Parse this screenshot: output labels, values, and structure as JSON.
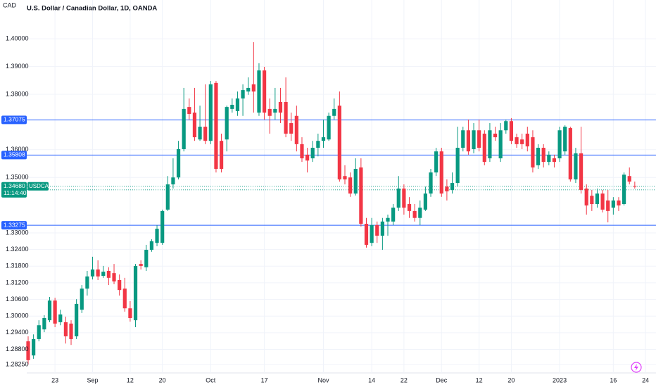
{
  "chart_data": {
    "type": "candlestick",
    "currency": "CAD",
    "title": "U.S. Dollar / Canadian Dollar, 1D, OANDA",
    "symbol": "USDCAD",
    "countdown": "11:14:40",
    "categories": [
      null,
      null,
      null,
      null,
      null,
      "23",
      null,
      null,
      null,
      null,
      null,
      null,
      "Sep",
      null,
      null,
      null,
      null,
      null,
      null,
      "12",
      null,
      null,
      null,
      null,
      null,
      "20",
      null,
      null,
      null,
      null,
      null,
      null,
      null,
      null,
      "Oct",
      null,
      null,
      null,
      null,
      null,
      null,
      null,
      null,
      null,
      "17",
      null,
      null,
      null,
      null,
      null,
      null,
      null,
      null,
      null,
      null,
      "Nov",
      null,
      null,
      null,
      null,
      null,
      null,
      null,
      null,
      "14",
      null,
      null,
      null,
      null,
      null,
      "22",
      null,
      null,
      null,
      null,
      null,
      null,
      "Dec",
      null,
      null,
      null,
      null,
      null,
      null,
      "12",
      null,
      null,
      null,
      null,
      null,
      "20",
      null,
      null,
      null,
      null,
      null,
      null,
      null,
      null,
      "2023",
      null,
      null,
      null,
      null,
      null,
      null,
      null,
      null,
      null,
      "16",
      null,
      null,
      null,
      null,
      null,
      "24"
    ],
    "open": [
      1.2909,
      1.2858,
      1.2917,
      1.2952,
      1.2985,
      1.3056,
      1.2978,
      1.2978,
      1.2973,
      1.2927,
      1.3023,
      1.3099,
      1.3143,
      1.3168,
      1.3145,
      1.3163,
      1.3155,
      1.313,
      1.3099,
      1.3028,
      1.2985,
      1.3188,
      1.3176,
      1.3239,
      1.3264,
      1.3264,
      1.3384,
      1.3475,
      1.35,
      1.3602,
      1.3754,
      1.3734,
      1.3637,
      1.3683,
      1.3632,
      1.3841,
      1.3632,
      1.3637,
      1.3747,
      1.3739,
      1.3785,
      1.381,
      1.3836,
      1.3734,
      1.3886,
      1.3747,
      1.3734,
      1.3772,
      1.3772,
      1.3696,
      1.3722,
      1.362,
      1.3582,
      1.3569,
      1.3607,
      1.3632,
      1.3637,
      1.3722,
      1.3759,
      1.3505,
      1.35,
      1.3442,
      1.3536,
      1.3333,
      1.3264,
      1.3328,
      1.329,
      1.3341,
      1.3341,
      1.3391,
      1.346,
      1.3404,
      1.3379,
      1.3354,
      1.3384,
      1.3442,
      1.3518,
      1.3594,
      1.3467,
      1.3455,
      1.348,
      1.3607,
      1.367,
      1.3602,
      1.367,
      1.3658,
      1.3569,
      1.3658,
      1.3569,
      1.367,
      1.3703,
      1.3645,
      1.3637,
      1.3658,
      1.3645,
      1.3544,
      1.3607,
      1.3556,
      1.3569,
      1.3569,
      1.3594,
      1.3678,
      1.3493,
      1.3587,
      1.346,
      1.3434,
      1.3404,
      1.3442,
      1.3417,
      1.3391,
      1.3417,
      1.3404,
      1.3505,
      1.347,
      null,
      null
    ],
    "high": [
      1.2927,
      1.2934,
      1.2985,
      1.3003,
      1.3069,
      1.3066,
      1.3023,
      1.2998,
      1.2985,
      1.3061,
      1.3112,
      1.3163,
      1.3214,
      1.3201,
      1.3181,
      1.3176,
      1.3188,
      1.315,
      1.3138,
      1.3054,
      1.3188,
      1.3201,
      1.3257,
      1.3277,
      1.3328,
      1.3384,
      1.3505,
      1.3569,
      1.3632,
      1.3823,
      1.3785,
      1.3823,
      1.3759,
      1.3836,
      1.3848,
      1.3848,
      1.3658,
      1.3759,
      1.3785,
      1.381,
      1.3836,
      1.3861,
      1.3988,
      1.3912,
      1.3899,
      1.3785,
      1.3823,
      1.3823,
      1.3861,
      1.3734,
      1.3759,
      1.3645,
      1.3607,
      1.3632,
      1.3658,
      1.3709,
      1.3734,
      1.3785,
      1.381,
      1.3544,
      1.3518,
      1.3569,
      1.3569,
      1.3354,
      1.3354,
      1.3341,
      1.3354,
      1.3366,
      1.3404,
      1.3505,
      1.3475,
      1.3429,
      1.3404,
      1.3417,
      1.3467,
      1.3531,
      1.3607,
      1.3607,
      1.3493,
      1.3518,
      1.3683,
      1.3683,
      1.3709,
      1.3696,
      1.3709,
      1.367,
      1.3696,
      1.3683,
      1.3696,
      1.3709,
      1.3714,
      1.3658,
      1.3658,
      1.3683,
      1.367,
      1.362,
      1.362,
      1.3594,
      1.3582,
      1.3683,
      1.3688,
      1.3683,
      1.3607,
      1.3683,
      1.3475,
      1.3455,
      1.346,
      1.3455,
      1.3455,
      1.3429,
      1.3429,
      1.3518,
      1.3536,
      1.3485,
      null,
      null
    ],
    "low": [
      1.2825,
      1.2846,
      1.2909,
      1.2942,
      1.2978,
      1.296,
      1.2967,
      1.2901,
      1.2896,
      1.2917,
      1.3011,
      1.3074,
      1.3132,
      1.313,
      1.3138,
      1.3112,
      1.3115,
      1.3074,
      1.3016,
      1.298,
      1.296,
      1.3168,
      1.3163,
      1.3232,
      1.3252,
      1.3257,
      1.3379,
      1.346,
      1.3493,
      1.3594,
      1.3709,
      1.3632,
      1.3632,
      1.362,
      1.362,
      1.3518,
      1.3518,
      1.3594,
      1.3734,
      1.3722,
      1.3722,
      1.3798,
      1.3734,
      1.3722,
      1.3709,
      1.3658,
      1.3709,
      1.3696,
      1.3645,
      1.3632,
      1.3594,
      1.3556,
      1.3518,
      1.3556,
      1.3576,
      1.3607,
      1.3632,
      1.3709,
      1.3485,
      1.3475,
      1.343,
      1.3435,
      1.3323,
      1.3247,
      1.3252,
      1.3264,
      1.3239,
      1.329,
      1.3328,
      1.3379,
      1.3366,
      1.3354,
      1.3341,
      1.3328,
      1.3379,
      1.343,
      1.3505,
      1.343,
      1.3417,
      1.3442,
      1.3467,
      1.3594,
      1.3582,
      1.3587,
      1.3594,
      1.3544,
      1.3556,
      1.3632,
      1.3556,
      1.3658,
      1.362,
      1.3607,
      1.3602,
      1.3594,
      1.3518,
      1.3531,
      1.3536,
      1.3544,
      1.3536,
      1.3556,
      1.3582,
      1.3485,
      1.348,
      1.3442,
      1.3366,
      1.3379,
      1.3391,
      1.3374,
      1.3338,
      1.3366,
      1.3379,
      1.3399,
      1.3475,
      1.346,
      null,
      null
    ],
    "close": [
      1.2841,
      1.2917,
      1.2967,
      1.2993,
      1.3056,
      1.2973,
      1.3006,
      1.2927,
      1.2917,
      1.3044,
      1.3099,
      1.3143,
      1.3168,
      1.3143,
      1.316,
      1.3138,
      1.3125,
      1.3094,
      1.3028,
      1.2993,
      1.3181,
      1.3181,
      1.3239,
      1.327,
      1.3315,
      1.3379,
      1.3475,
      1.35,
      1.3602,
      1.3747,
      1.3729,
      1.3645,
      1.3683,
      1.3632,
      1.3836,
      1.3531,
      1.3531,
      1.3754,
      1.3762,
      1.3785,
      1.3815,
      1.3823,
      1.381,
      1.3886,
      1.3734,
      1.3722,
      1.3747,
      1.3734,
      1.3658,
      1.3658,
      1.362,
      1.3569,
      1.3561,
      1.3607,
      1.3632,
      1.3645,
      1.3722,
      1.3747,
      1.3493,
      1.3493,
      1.3442,
      1.3531,
      1.3333,
      1.3257,
      1.3328,
      1.329,
      1.3341,
      1.3354,
      1.3391,
      1.346,
      1.3391,
      1.3379,
      1.3354,
      1.3391,
      1.3442,
      1.3518,
      1.3594,
      1.3442,
      1.345,
      1.348,
      1.3607,
      1.367,
      1.3594,
      1.367,
      1.3607,
      1.3556,
      1.367,
      1.3645,
      1.367,
      1.3703,
      1.3632,
      1.362,
      1.362,
      1.3612,
      1.3536,
      1.3607,
      1.3556,
      1.3582,
      1.3556,
      1.367,
      1.3683,
      1.3493,
      1.3587,
      1.3455,
      1.3399,
      1.3404,
      1.3442,
      1.3384,
      1.3379,
      1.3417,
      1.3399,
      1.351,
      1.3485,
      1.3468,
      null,
      null
    ],
    "up_color": "#089981",
    "down_color": "#f23645",
    "ylim": [
      1.2795,
      1.414
    ],
    "yticks": [
      {
        "value": 1.2825,
        "label": "1.28250"
      },
      {
        "value": 1.288,
        "label": "1.28800"
      },
      {
        "value": 1.294,
        "label": "1.29400"
      },
      {
        "value": 1.3,
        "label": "1.30000"
      },
      {
        "value": 1.306,
        "label": "1.30600"
      },
      {
        "value": 1.312,
        "label": "1.31200"
      },
      {
        "value": 1.318,
        "label": "1.31800"
      },
      {
        "value": 1.324,
        "label": "1.32400"
      },
      {
        "value": 1.33,
        "label": "1.33000"
      },
      {
        "value": 1.35,
        "label": "1.35000"
      },
      {
        "value": 1.36,
        "label": "1.36000"
      },
      {
        "value": 1.38,
        "label": "1.38000"
      },
      {
        "value": 1.39,
        "label": "1.39000"
      },
      {
        "value": 1.4,
        "label": "1.40000"
      }
    ],
    "levels": [
      1.37075,
      1.35808,
      1.33275
    ],
    "level_color": "#2962ff",
    "last_price": {
      "value": 1.3468,
      "label": "1.34680"
    },
    "prev_close": 1.34553,
    "grid": true
  }
}
